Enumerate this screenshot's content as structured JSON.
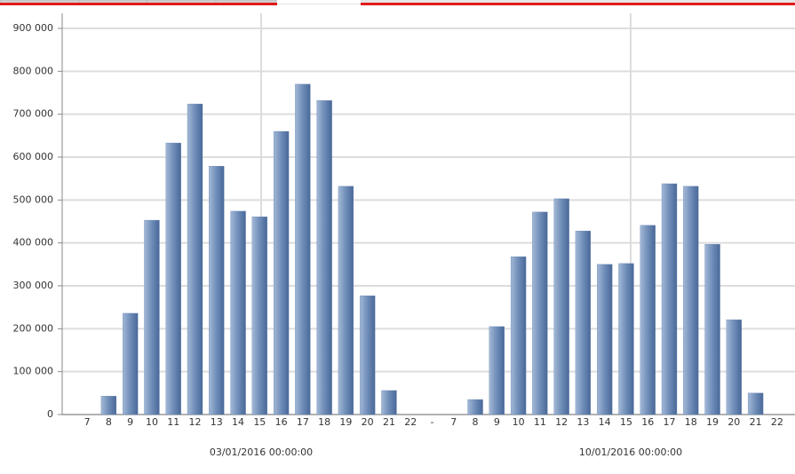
{
  "chart_data": {
    "type": "bar",
    "categories": [
      "7",
      "8",
      "9",
      "10",
      "11",
      "12",
      "13",
      "14",
      "15",
      "16",
      "17",
      "18",
      "19",
      "20",
      "21",
      "22",
      "-",
      "7",
      "8",
      "9",
      "10",
      "11",
      "12",
      "13",
      "14",
      "15",
      "16",
      "17",
      "18",
      "19",
      "20",
      "21",
      "22"
    ],
    "values": [
      0,
      43000,
      236000,
      453000,
      633000,
      724000,
      579000,
      474000,
      461000,
      660000,
      770000,
      732000,
      532000,
      277000,
      56000,
      0,
      null,
      0,
      35000,
      205000,
      368000,
      472000,
      503000,
      428000,
      350000,
      352000,
      441000,
      538000,
      532000,
      397000,
      221000,
      50000,
      0
    ],
    "groups": [
      "03/01/2016 00:00:00",
      "10/01/2016 00:00:00"
    ],
    "color": "#5d7fae",
    "ylim": [
      0,
      900000
    ],
    "yticks": [
      0,
      {
        "value": 100000,
        "label": "100 000"
      },
      {
        "value": 200000,
        "label": "200 000"
      },
      {
        "value": 300000,
        "label": "300 000"
      },
      {
        "value": 400000,
        "label": "400 000"
      },
      {
        "value": 500000,
        "label": "500 000"
      },
      {
        "value": 600000,
        "label": "600 000"
      },
      {
        "value": 700000,
        "label": "700 000"
      },
      {
        "value": 800000,
        "label": "800 000"
      },
      {
        "value": 900000,
        "label": "900 000"
      }
    ],
    "grid": true
  }
}
